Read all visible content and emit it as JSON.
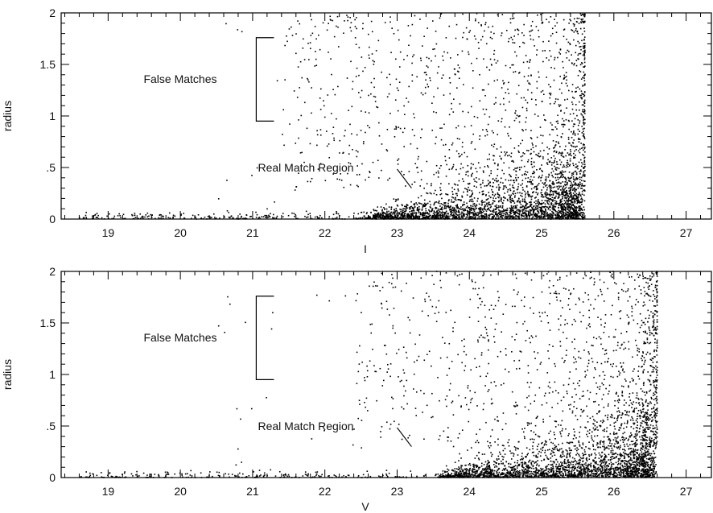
{
  "chart_data": [
    {
      "type": "scatter",
      "xlabel": "I",
      "ylabel": "radius",
      "xlim": [
        18.35,
        27.35
      ],
      "ylim": [
        0,
        2
      ],
      "x_ticks": [
        "19",
        "20",
        "21",
        "22",
        "23",
        "24",
        "25",
        "26",
        "27"
      ],
      "y_ticks": [
        "0",
        ".5",
        "1",
        "1.5",
        "2"
      ],
      "annotations": {
        "false_matches": "False Matches",
        "real_match": "Real Match Region",
        "bracket_y": [
          0.95,
          1.76
        ],
        "bracket_x": 21.05,
        "arrow_from": [
          23.0,
          0.5
        ],
        "arrow_to": [
          23.2,
          0.3
        ]
      },
      "distribution": {
        "magnitude_limit": 25.6,
        "faint_start": 18.6,
        "core_center": 24.9,
        "seed": 7
      }
    },
    {
      "type": "scatter",
      "xlabel": "V",
      "ylabel": "radius",
      "xlim": [
        18.35,
        27.35
      ],
      "ylim": [
        0,
        2
      ],
      "x_ticks": [
        "19",
        "20",
        "21",
        "22",
        "23",
        "24",
        "25",
        "26",
        "27"
      ],
      "y_ticks": [
        "0",
        ".5",
        "1",
        "1.5",
        "2"
      ],
      "annotations": {
        "false_matches": "False Matches",
        "real_match": "Real Match Region",
        "bracket_y": [
          0.95,
          1.76
        ],
        "bracket_x": 21.05,
        "arrow_from": [
          23.0,
          0.5
        ],
        "arrow_to": [
          23.2,
          0.3
        ]
      },
      "distribution": {
        "magnitude_limit": 26.6,
        "faint_start": 18.6,
        "core_center": 25.6,
        "seed": 13
      }
    }
  ]
}
